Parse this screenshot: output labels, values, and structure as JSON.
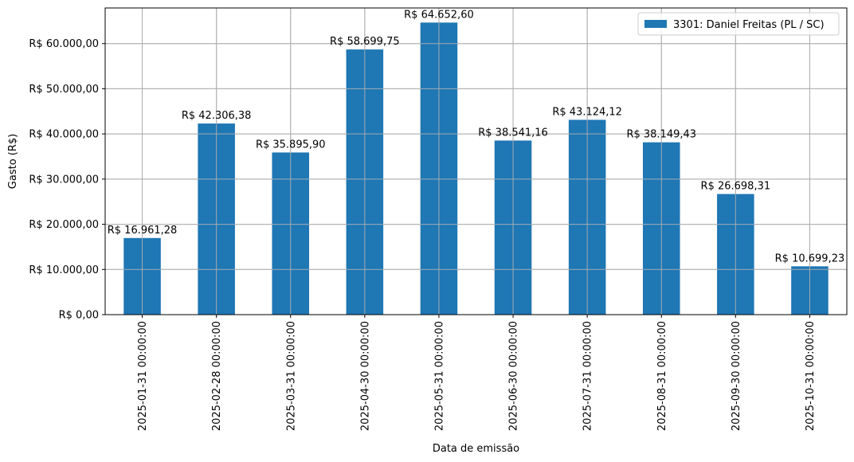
{
  "chart_data": {
    "type": "bar",
    "categories": [
      "2025-01-31 00:00:00",
      "2025-02-28 00:00:00",
      "2025-03-31 00:00:00",
      "2025-04-30 00:00:00",
      "2025-05-31 00:00:00",
      "2025-06-30 00:00:00",
      "2025-07-31 00:00:00",
      "2025-08-31 00:00:00",
      "2025-09-30 00:00:00",
      "2025-10-31 00:00:00"
    ],
    "series": [
      {
        "name": "3301: Daniel Freitas (PL / SC)",
        "color": "#1f77b4",
        "values": [
          16961.28,
          42306.38,
          35895.9,
          58699.75,
          64652.6,
          38541.16,
          43124.12,
          38149.43,
          26698.31,
          10699.23
        ],
        "data_labels": [
          "R$ 16.961,28",
          "R$ 42.306,38",
          "R$ 35.895,90",
          "R$ 58.699,75",
          "R$ 64.652,60",
          "R$ 38.541,16",
          "R$ 43.124,12",
          "R$ 38.149,43",
          "R$ 26.698,31",
          "R$ 10.699,23"
        ]
      }
    ],
    "xlabel": "Data de emissão",
    "ylabel": "Gasto (R$)",
    "ylim": [
      0,
      67885.23
    ],
    "yticks": [
      0,
      10000,
      20000,
      30000,
      40000,
      50000,
      60000
    ],
    "ytick_labels": [
      "R$ 0,00",
      "R$ 10.000,00",
      "R$ 20.000,00",
      "R$ 30.000,00",
      "R$ 40.000,00",
      "R$ 50.000,00",
      "R$ 60.000,00"
    ],
    "grid": true,
    "legend_position": "top-right"
  }
}
